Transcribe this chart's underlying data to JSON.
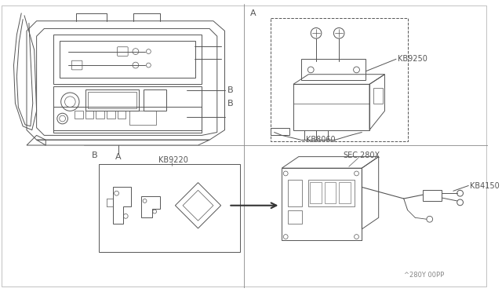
{
  "bg_color": "#ffffff",
  "lc": "#555555",
  "lc_dark": "#333333",
  "lw": 0.7,
  "labels": {
    "A_tr": "A",
    "B_bl": "B",
    "A_bl": "A",
    "KB9250": "KB9250",
    "KB8060": "KB8060",
    "KB9220": "KB9220",
    "KB4150": "KB4150",
    "SEC280X": "SEC.280X",
    "watermark": "^280Y 00PP"
  }
}
